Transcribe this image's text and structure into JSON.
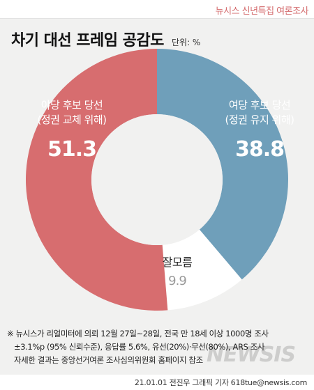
{
  "header": {
    "series_label": "뉴시스 신년특집 여론조사"
  },
  "title": "차기 대선 프레임 공감도",
  "unit": "단위: %",
  "colors": {
    "opposition": "#d76d6f",
    "ruling": "#6f9fba",
    "unknown": "#ffffff",
    "background": "#f1f1f0"
  },
  "chart_data": {
    "type": "pie",
    "donut": true,
    "title": "차기 대선 프레임 공감도",
    "unit": "%",
    "slices": [
      {
        "label_line1": "여당 후보 당선",
        "label_line2": "(정권 유지 위해)",
        "value": 38.8,
        "value_text": "38.8",
        "color": "#6f9fba"
      },
      {
        "label_line1": "잘모름",
        "label_line2": "",
        "value": 9.9,
        "value_text": "9.9",
        "color": "#ffffff"
      },
      {
        "label_line1": "야당 후보 당선",
        "label_line2": "(정권 교체 위해)",
        "value": 51.3,
        "value_text": "51.3",
        "color": "#d76d6f"
      }
    ]
  },
  "footnote": {
    "line1": "※ 뉴시스가 리얼미터에 의뢰 12월 27일~28일, 전국 만 18세 이상 1000명 조사",
    "line2": "±3.1%p (95% 신뢰수준), 응답률 5.6%, 유선(20%)·무선(80%), ARS 조사",
    "line3": "자세한 결과는 중앙선거여론 조사심의위원회 홈페이지 참조"
  },
  "credit": "21.01.01 전진우 그래픽 기자 618tue@newsis.com",
  "watermark": "NEWSIS"
}
